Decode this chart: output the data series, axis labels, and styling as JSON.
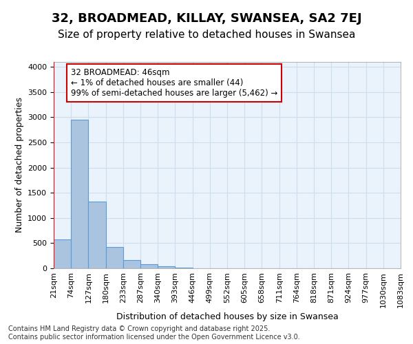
{
  "title": "32, BROADMEAD, KILLAY, SWANSEA, SA2 7EJ",
  "subtitle": "Size of property relative to detached houses in Swansea",
  "xlabel": "Distribution of detached houses by size in Swansea",
  "ylabel": "Number of detached properties",
  "bar_values": [
    580,
    2950,
    1330,
    420,
    160,
    80,
    40,
    10,
    5,
    2,
    1,
    0,
    0,
    0,
    0,
    0,
    0,
    0,
    0,
    0
  ],
  "x_labels": [
    "21sqm",
    "74sqm",
    "127sqm",
    "180sqm",
    "233sqm",
    "287sqm",
    "340sqm",
    "393sqm",
    "446sqm",
    "499sqm",
    "552sqm",
    "605sqm",
    "658sqm",
    "711sqm",
    "764sqm",
    "818sqm",
    "871sqm",
    "924sqm",
    "977sqm",
    "1030sqm",
    "1083sqm"
  ],
  "bar_color": "#aac4e0",
  "bar_edge_color": "#5b9bd5",
  "grid_color": "#ccddee",
  "background_color": "#eaf2fb",
  "annotation_box_color": "#ffffff",
  "annotation_border_color": "#cc0000",
  "annotation_text": "32 BROADMEAD: 46sqm\n← 1% of detached houses are smaller (44)\n99% of semi-detached houses are larger (5,462) →",
  "ylim": [
    0,
    4100
  ],
  "yticks": [
    0,
    500,
    1000,
    1500,
    2000,
    2500,
    3000,
    3500,
    4000
  ],
  "footnote": "Contains HM Land Registry data © Crown copyright and database right 2025.\nContains public sector information licensed under the Open Government Licence v3.0.",
  "title_fontsize": 13,
  "subtitle_fontsize": 11,
  "axis_label_fontsize": 9,
  "tick_fontsize": 8,
  "annotation_fontsize": 8.5,
  "footnote_fontsize": 7
}
